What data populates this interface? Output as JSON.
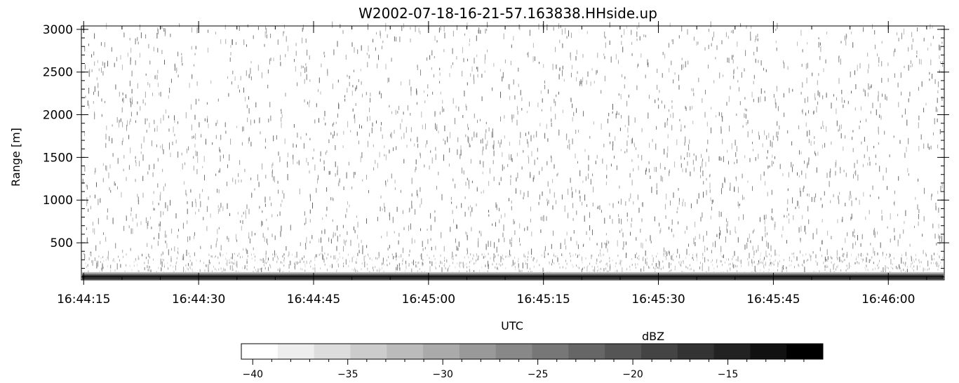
{
  "chart_data": {
    "type": "heatmap",
    "title": "W2002-07-18-16-21-57.163838.HHside.up",
    "xlabel": "UTC",
    "ylabel": "Range [m]",
    "x_tick_labels": [
      "16:44:15",
      "16:44:30",
      "16:44:45",
      "16:45:00",
      "16:45:15",
      "16:45:30",
      "16:45:45",
      "16:46:00"
    ],
    "x_range": [
      "16:44:14.7",
      "16:46:07.3"
    ],
    "y_ticks": [
      500,
      1000,
      1500,
      2000,
      2500,
      3000
    ],
    "y_range": [
      65,
      3040
    ],
    "colorbar": {
      "label": "dBZ",
      "tick_values": [
        -40,
        -35,
        -30,
        -25,
        -20,
        -15
      ],
      "range": [
        -40.6,
        -10.0
      ],
      "levels": 16,
      "colors": [
        "#ffffff",
        "#eeeeee",
        "#dddddd",
        "#cccccc",
        "#bbbbbb",
        "#aaaaaa",
        "#999999",
        "#888888",
        "#777777",
        "#666666",
        "#555555",
        "#444444",
        "#333333",
        "#222222",
        "#111111",
        "#000000"
      ]
    },
    "grid": false,
    "description_of_field": "sparse faint speckle over entire range; strong dark band near 100 m"
  }
}
